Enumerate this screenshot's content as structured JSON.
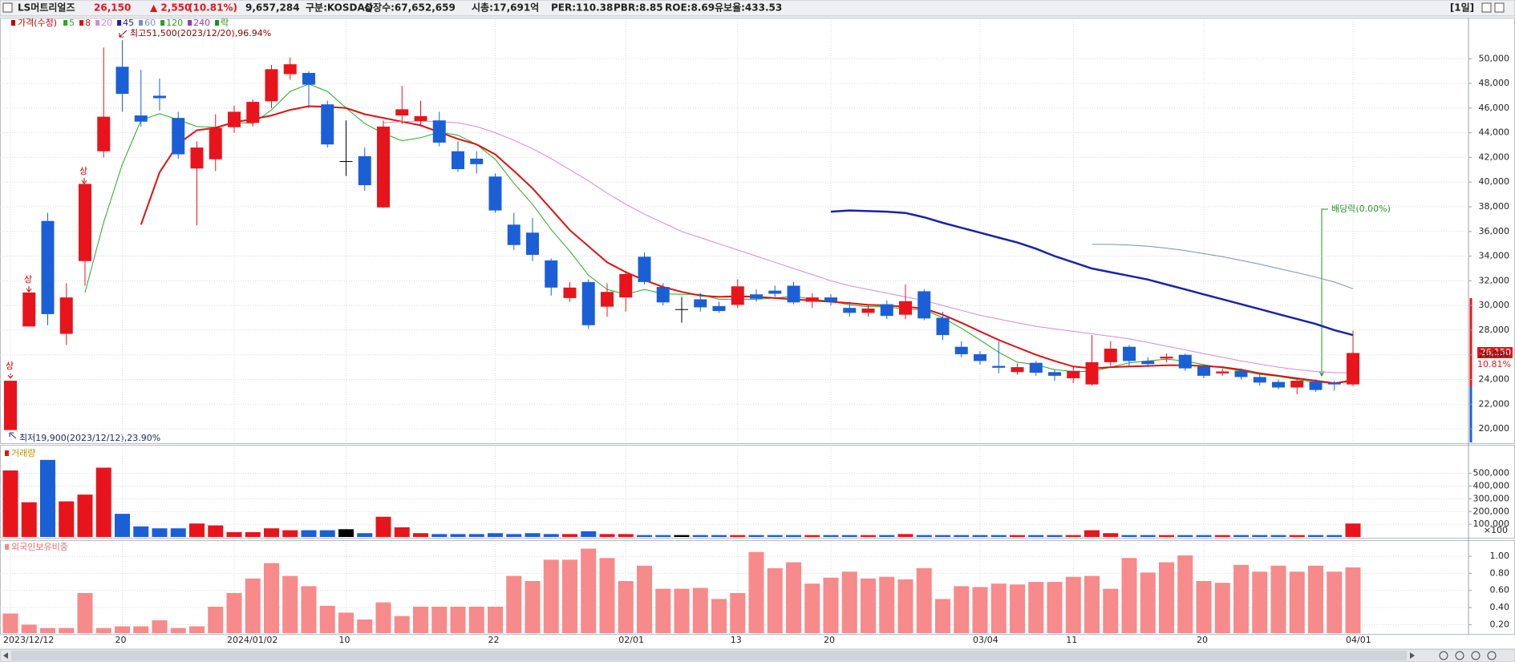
{
  "header": {
    "name": "LS머트리얼즈",
    "price": "26,150",
    "change": "▲ 2,550",
    "change_pct": "(10.81%)",
    "volume": "9,657,284",
    "market": "구분:KOSDAQ",
    "shares": "상장수:67,652,659",
    "market_cap": "시총:17,691억",
    "per": "PER:110.38",
    "pbr": "PBR:8.85",
    "roe": "ROE:8.69",
    "reserve": "유보율:433.53",
    "period": "[1일]"
  },
  "chart_data": [
    {
      "type": "candlestick",
      "price_label": "가격(수정)",
      "categories": [
        "2023/12/12",
        null,
        null,
        null,
        null,
        null,
        "20",
        null,
        null,
        null,
        null,
        null,
        "2024/01/02",
        null,
        null,
        null,
        null,
        null,
        "10",
        null,
        null,
        null,
        null,
        null,
        null,
        null,
        "22",
        null,
        null,
        null,
        null,
        null,
        null,
        "02/01",
        null,
        null,
        null,
        null,
        null,
        "13",
        null,
        null,
        null,
        null,
        "20",
        null,
        null,
        null,
        null,
        null,
        null,
        null,
        "03/04",
        null,
        null,
        null,
        null,
        "11",
        null,
        null,
        null,
        null,
        null,
        null,
        "20",
        null,
        null,
        null,
        null,
        null,
        null,
        null,
        "04/01"
      ],
      "open": [
        19900,
        28300,
        36850,
        27700,
        33600,
        42500,
        49350,
        45400,
        47000,
        45200,
        41100,
        41850,
        44450,
        44800,
        46550,
        48750,
        48850,
        46300,
        41700,
        42100,
        37950,
        45400,
        44950,
        45000,
        42500,
        41900,
        40450,
        36550,
        35900,
        33650,
        30600,
        31900,
        29900,
        30650,
        33950,
        31500,
        29700,
        30500,
        29950,
        30050,
        30900,
        31200,
        31600,
        30300,
        30650,
        29800,
        29400,
        30100,
        29250,
        31150,
        29000,
        26650,
        26050,
        25100,
        24600,
        25350,
        24600,
        24100,
        23600,
        25400,
        26650,
        25500,
        25700,
        26000,
        25050,
        24500,
        24700,
        24200,
        23800,
        23350,
        23850,
        23750,
        23600
      ],
      "high": [
        23900,
        31050,
        37500,
        31800,
        39850,
        50900,
        51500,
        49100,
        48400,
        45700,
        43300,
        45500,
        46200,
        46700,
        49500,
        50100,
        49000,
        46600,
        45000,
        42800,
        45000,
        47800,
        46600,
        45700,
        43300,
        42500,
        40700,
        37500,
        37100,
        33800,
        31900,
        32100,
        31800,
        32800,
        34300,
        31800,
        30700,
        31000,
        30300,
        32100,
        31300,
        31600,
        31900,
        31000,
        30900,
        30300,
        30000,
        30400,
        31700,
        31300,
        29500,
        27100,
        26300,
        27100,
        25300,
        25500,
        24800,
        25100,
        27600,
        27100,
        26800,
        25800,
        26100,
        26100,
        25200,
        24900,
        24900,
        24400,
        24000,
        24100,
        24000,
        23900,
        27950
      ],
      "low": [
        19900,
        28300,
        28400,
        26800,
        31600,
        42000,
        45700,
        44500,
        45800,
        41900,
        36500,
        40900,
        44000,
        44500,
        46000,
        48300,
        46000,
        42800,
        40500,
        39300,
        37900,
        44700,
        44500,
        42900,
        40800,
        40700,
        37500,
        34500,
        33600,
        30800,
        30300,
        28100,
        29100,
        29500,
        31700,
        30000,
        28600,
        29500,
        29400,
        29800,
        30300,
        30700,
        30100,
        29800,
        30000,
        29100,
        29100,
        28900,
        28900,
        28800,
        27200,
        25800,
        25200,
        24500,
        24400,
        24300,
        23900,
        23700,
        23500,
        25100,
        25100,
        25000,
        25400,
        24700,
        24100,
        24300,
        24000,
        23500,
        23200,
        22800,
        23000,
        23100,
        23450
      ],
      "close": [
        23900,
        31050,
        29300,
        30650,
        39850,
        45300,
        47150,
        44900,
        46800,
        42250,
        42800,
        44400,
        45700,
        46500,
        49150,
        49550,
        47900,
        43050,
        41700,
        39750,
        44500,
        45900,
        45350,
        43200,
        41050,
        41450,
        37700,
        34900,
        34100,
        31450,
        31450,
        28400,
        31100,
        32550,
        31900,
        30250,
        29700,
        29850,
        29550,
        31550,
        30550,
        30950,
        30250,
        30650,
        30300,
        29400,
        29750,
        29150,
        30350,
        28950,
        27600,
        26050,
        25500,
        24950,
        25000,
        24550,
        24300,
        24700,
        25400,
        26500,
        25500,
        25250,
        25850,
        24900,
        24300,
        24650,
        24200,
        23750,
        23350,
        23900,
        23150,
        23600,
        26150
      ],
      "ma": [
        {
          "name": "5",
          "color": "#22aa22",
          "values": [
            null,
            null,
            null,
            null,
            31050,
            36750,
            41450,
            45000,
            45550,
            45050,
            44500,
            44450,
            44850,
            44750,
            45850,
            47350,
            47950,
            47350,
            46000,
            44750,
            43950,
            43350,
            43600,
            44050,
            43800,
            43050,
            41850,
            39900,
            38200,
            36150,
            34400,
            32450,
            31300,
            30900,
            31300,
            30950,
            30900,
            30900,
            30500,
            30500,
            30500,
            30600,
            30750,
            30500,
            30350,
            30050,
            29900,
            29900,
            29700,
            29650,
            29000,
            28150,
            27200,
            26200,
            25400,
            25200,
            24800,
            24650,
            24650,
            25000,
            25350,
            25500,
            25650,
            25500,
            25200,
            24950,
            24700,
            24400,
            24250,
            24000,
            23750,
            23700,
            24000
          ]
        },
        {
          "name": "8",
          "color": "#dd1111",
          "values": [
            null,
            null,
            null,
            null,
            null,
            null,
            null,
            36550,
            40800,
            43100,
            44200,
            44400,
            44850,
            45100,
            45400,
            45850,
            46150,
            46100,
            46000,
            45500,
            45200,
            44900,
            44600,
            44050,
            43500,
            43050,
            42250,
            40900,
            39500,
            37800,
            36100,
            34800,
            33500,
            32700,
            32050,
            31500,
            31100,
            30800,
            30700,
            30750,
            30700,
            30600,
            30500,
            30400,
            30300,
            30200,
            30050,
            30000,
            29900,
            29750,
            29250,
            28600,
            27900,
            27200,
            26600,
            26000,
            25500,
            25050,
            24900,
            25000,
            25050,
            25100,
            25150,
            25150,
            25100,
            25000,
            24800,
            24500,
            24300,
            24100,
            23900,
            23700,
            23900
          ]
        },
        {
          "name": "20",
          "color": "#d48ad4",
          "values": [
            null,
            null,
            null,
            null,
            null,
            null,
            null,
            null,
            null,
            null,
            null,
            null,
            null,
            null,
            null,
            null,
            null,
            null,
            null,
            null,
            44800,
            44900,
            44950,
            44900,
            44800,
            44500,
            44000,
            43400,
            42700,
            41900,
            41000,
            40100,
            39100,
            38200,
            37400,
            36700,
            36000,
            35500,
            35000,
            34500,
            34000,
            33500,
            33000,
            32500,
            32000,
            31600,
            31300,
            31000,
            30700,
            30400,
            30000,
            29600,
            29200,
            28900,
            28600,
            28300,
            28100,
            27900,
            27700,
            27500,
            27300,
            27000,
            26700,
            26400,
            26100,
            25800,
            25500,
            25250,
            25000,
            24800,
            24650,
            24550,
            24550
          ]
        },
        {
          "name": "45",
          "color": "#1a22aa",
          "values": [
            null,
            null,
            null,
            null,
            null,
            null,
            null,
            null,
            null,
            null,
            null,
            null,
            null,
            null,
            null,
            null,
            null,
            null,
            null,
            null,
            null,
            null,
            null,
            null,
            null,
            null,
            null,
            null,
            null,
            null,
            null,
            null,
            null,
            null,
            null,
            null,
            null,
            null,
            null,
            null,
            null,
            null,
            null,
            null,
            37600,
            37700,
            37650,
            37600,
            37500,
            37150,
            36700,
            36300,
            35900,
            35500,
            35100,
            34600,
            34000,
            33500,
            33000,
            32700,
            32400,
            32100,
            31700,
            31300,
            30900,
            30500,
            30100,
            29700,
            29300,
            28900,
            28500,
            28000,
            27600
          ]
        },
        {
          "name": "60",
          "color": "#7890b8",
          "values": [
            null,
            null,
            null,
            null,
            null,
            null,
            null,
            null,
            null,
            null,
            null,
            null,
            null,
            null,
            null,
            null,
            null,
            null,
            null,
            null,
            null,
            null,
            null,
            null,
            null,
            null,
            null,
            null,
            null,
            null,
            null,
            null,
            null,
            null,
            null,
            null,
            null,
            null,
            null,
            null,
            null,
            null,
            null,
            null,
            null,
            null,
            null,
            null,
            null,
            null,
            null,
            null,
            null,
            null,
            null,
            null,
            null,
            null,
            34950,
            34950,
            34900,
            34800,
            34650,
            34450,
            34200,
            33950,
            33650,
            33350,
            33000,
            32650,
            32300,
            31900,
            31350
          ]
        }
      ],
      "legend_extra": [
        {
          "name": "120",
          "color": "#2f9a2f"
        },
        {
          "name": "240",
          "color": "#8a3fae"
        },
        {
          "name": "락",
          "color": "#1f8f1f"
        }
      ],
      "up_color": "#e8141c",
      "down_color": "#1b5fd6",
      "flat_color": "#000000",
      "ylim": [
        18900,
        53200
      ],
      "yticks": [
        {
          "value": 20000,
          "label": "20,000"
        },
        {
          "value": 22000,
          "label": "22,000"
        },
        {
          "value": 24000,
          "label": "24,000"
        },
        {
          "value": 26000,
          "label": "26,000"
        },
        {
          "value": 28000,
          "label": "28,000"
        },
        {
          "value": 30000,
          "label": "30,000"
        },
        {
          "value": 32000,
          "label": "32,000"
        },
        {
          "value": 34000,
          "label": "34,000"
        },
        {
          "value": 36000,
          "label": "36,000"
        },
        {
          "value": 38000,
          "label": "38,000"
        },
        {
          "value": 40000,
          "label": "40,000"
        },
        {
          "value": 42000,
          "label": "42,000"
        },
        {
          "value": 44000,
          "label": "44,000"
        },
        {
          "value": 46000,
          "label": "46,000"
        },
        {
          "value": 48000,
          "label": "48,000"
        },
        {
          "value": 50000,
          "label": "50,000"
        }
      ],
      "grid": true,
      "annotations": {
        "high": "최고51,500(2023/12/20),96.94%",
        "low": "최저19,900(2023/12/12),23.90%",
        "dividend": "배당락(0.00%)",
        "limit_up": [
          "상",
          "상",
          "상"
        ],
        "last_price": "26,150",
        "last_change": "10.81%"
      }
    },
    {
      "type": "bar",
      "title": "거래량",
      "unit_label": "×100",
      "values": [
        523000,
        273000,
        606000,
        280000,
        333000,
        545000,
        182000,
        83000,
        68000,
        68000,
        106000,
        91000,
        38000,
        38000,
        68000,
        53000,
        53000,
        53000,
        61000,
        30000,
        159000,
        76000,
        30000,
        23000,
        23000,
        23000,
        30000,
        23000,
        30000,
        23000,
        23000,
        45000,
        23000,
        23000,
        15000,
        15000,
        15000,
        15000,
        15000,
        15000,
        15000,
        15000,
        15000,
        15000,
        15000,
        15000,
        15000,
        15000,
        23000,
        15000,
        15000,
        15000,
        15000,
        15000,
        15000,
        15000,
        15000,
        15000,
        53000,
        30000,
        15000,
        15000,
        15000,
        15000,
        15000,
        15000,
        15000,
        15000,
        15000,
        15000,
        15000,
        15000,
        106000
      ],
      "ylim": [
        0,
        712000
      ],
      "yticks": [
        {
          "value": 100000,
          "label": "100,000"
        },
        {
          "value": 200000,
          "label": "200,000"
        },
        {
          "value": 300000,
          "label": "300,000"
        },
        {
          "value": 400000,
          "label": "400,000"
        },
        {
          "value": 500000,
          "label": "500,000"
        }
      ],
      "grid": true
    },
    {
      "type": "bar",
      "title": "외국인보유비중",
      "color": "#f78a8a",
      "values": [
        0.33,
        0.2,
        0.16,
        0.16,
        0.57,
        0.16,
        0.18,
        0.18,
        0.25,
        0.16,
        0.18,
        0.41,
        0.57,
        0.74,
        0.92,
        0.77,
        0.65,
        0.42,
        0.34,
        0.26,
        0.46,
        0.3,
        0.41,
        0.41,
        0.41,
        0.41,
        0.41,
        0.77,
        0.71,
        0.96,
        0.96,
        1.09,
        0.98,
        0.71,
        0.89,
        0.62,
        0.62,
        0.63,
        0.5,
        0.57,
        1.05,
        0.86,
        0.93,
        0.68,
        0.75,
        0.82,
        0.74,
        0.76,
        0.73,
        0.86,
        0.5,
        0.65,
        0.64,
        0.68,
        0.67,
        0.7,
        0.7,
        0.76,
        0.77,
        0.62,
        0.98,
        0.81,
        0.93,
        1.01,
        0.71,
        0.69,
        0.9,
        0.82,
        0.89,
        0.82,
        0.89,
        0.82,
        0.87
      ],
      "ylim": [
        0.1,
        1.17
      ],
      "yticks": [
        {
          "value": 0.2,
          "label": "0.20"
        },
        {
          "value": 0.4,
          "label": "0.40"
        },
        {
          "value": 0.6,
          "label": "0.60"
        },
        {
          "value": 0.8,
          "label": "0.80"
        },
        {
          "value": 1.0,
          "label": "1.00"
        }
      ],
      "grid": true
    }
  ]
}
